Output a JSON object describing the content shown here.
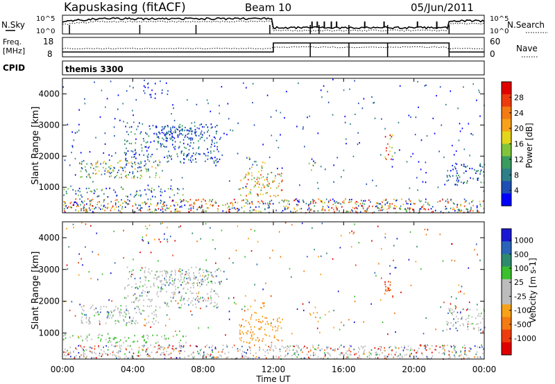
{
  "header": {
    "station": "Kapuskasing (fitACF)",
    "beam": "Beam 10",
    "date": "05/Jun/2011"
  },
  "noise_panel": {
    "left_label": "N.Sky",
    "right_label": "N.Search",
    "y_top_label": "10^5",
    "y_bottom_label": "10^0",
    "right_top_label": "10^5",
    "right_bottom_label": "10^0"
  },
  "freq_panel": {
    "left_label_1": "Freq.",
    "left_label_2": "[MHz]",
    "right_label": "Nave",
    "left_tick_top": "18",
    "left_tick_bottom": "8",
    "right_tick_top": "60",
    "right_tick_bottom": "0"
  },
  "cpid_panel": {
    "left_label": "CPID",
    "program": "themis 3300"
  },
  "chart_data": [
    {
      "type": "heatmap",
      "name": "power",
      "ylabel": "Slant Range [km]",
      "y_ticks": [
        "1000",
        "2000",
        "3000",
        "4000"
      ],
      "ylim": [
        180,
        4500
      ],
      "colorbar_label": "Power [dB]",
      "colorbar_ticks": [
        "4",
        "8",
        "12",
        "16",
        "20",
        "24",
        "28"
      ],
      "colorbar_colors": [
        "#0000ff",
        "#1f4fb4",
        "#2e7f8a",
        "#3a9b5e",
        "#7fc43a",
        "#e3d51b",
        "#f7a11a",
        "#f47a12",
        "#ee3b0d",
        "#e00000"
      ]
    },
    {
      "type": "heatmap",
      "name": "velocity",
      "ylabel": "Slant Range [km]",
      "y_ticks": [
        "1000",
        "2000",
        "3000",
        "4000"
      ],
      "ylim": [
        180,
        4500
      ],
      "xlabel": "Time UT",
      "x_ticks": [
        "00:00",
        "04:00",
        "08:00",
        "12:00",
        "16:00",
        "20:00",
        "00:00"
      ],
      "colorbar_label": "Velocity [m s-1]",
      "colorbar_ticks": [
        "1000",
        "500",
        "100",
        "25",
        "-25",
        "-100",
        "-500",
        "-1000"
      ],
      "colorbar_colors": [
        "#1818d2",
        "#2a64b8",
        "#2e8a6e",
        "#3bbf2e",
        "#bcbcbc",
        "#bcbcbc",
        "#f7a11a",
        "#f47a12",
        "#ee3b0d",
        "#e00000"
      ]
    }
  ]
}
